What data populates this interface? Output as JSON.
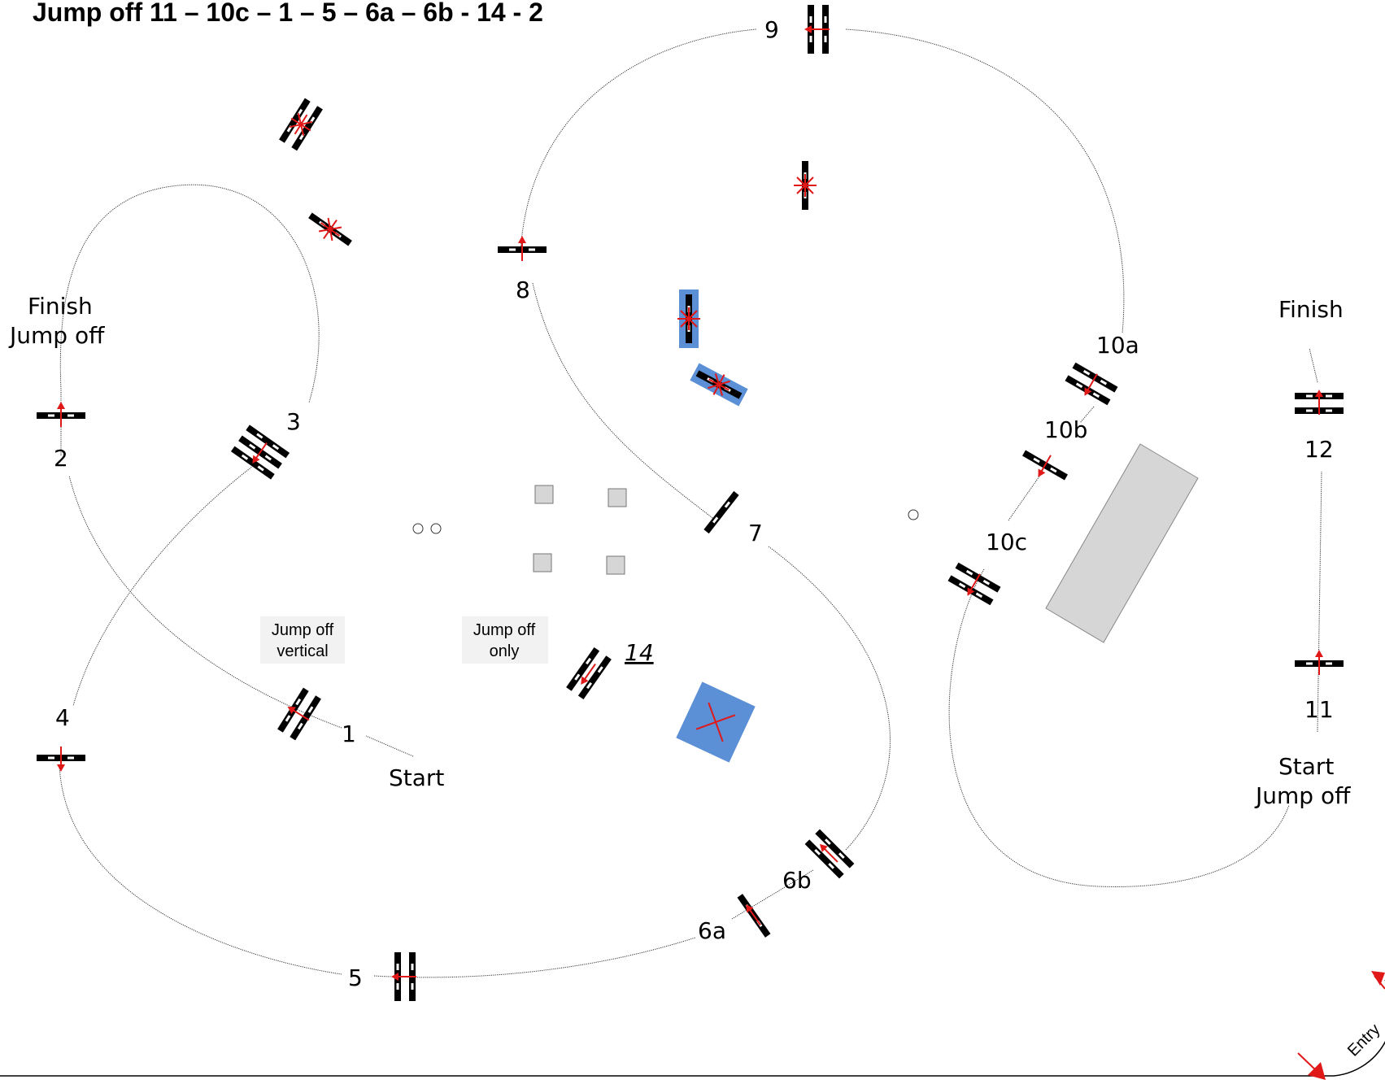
{
  "title": "Jump off  11 – 10c – 1 – 5 – 6a – 6b - 14 - 2",
  "fence_labels": {
    "f1": "1",
    "f2": "2",
    "f3": "3",
    "f4": "4",
    "f5": "5",
    "f6a": "6a",
    "f6b": "6b",
    "f7": "7",
    "f8": "8",
    "f9": "9",
    "f10a": "10a",
    "f10b": "10b",
    "f10c": "10c",
    "f11": "11",
    "f12": "12",
    "f14": "14"
  },
  "texts": {
    "start": "Start",
    "finish": "Finish",
    "finish_jumpoff_line1": "Finish",
    "finish_jumpoff_line2": "Jump off",
    "start_jumpoff_line1": "Start",
    "start_jumpoff_line2": "Jump off",
    "jumpoff_vertical_line1": "Jump off",
    "jumpoff_vertical_line2": "vertical",
    "jumpoff_only_line1": "Jump off",
    "jumpoff_only_line2": "only",
    "entry": "Entry"
  },
  "colors": {
    "accent_red": "#e01818",
    "water_blue": "#5b8fd6",
    "obstacle_gray": "#d6d6d6"
  }
}
